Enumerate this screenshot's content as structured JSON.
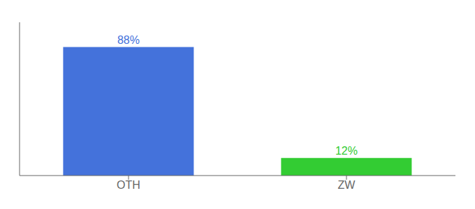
{
  "chart_data": {
    "type": "bar",
    "categories": [
      "OTH",
      "ZW"
    ],
    "values": [
      88,
      12
    ],
    "value_labels": [
      "88%",
      "12%"
    ],
    "colors": [
      "#4472db",
      "#33cc33"
    ],
    "ylim": [
      0,
      105
    ],
    "yticks": [],
    "data_labels": true,
    "tick_labels": "x"
  }
}
